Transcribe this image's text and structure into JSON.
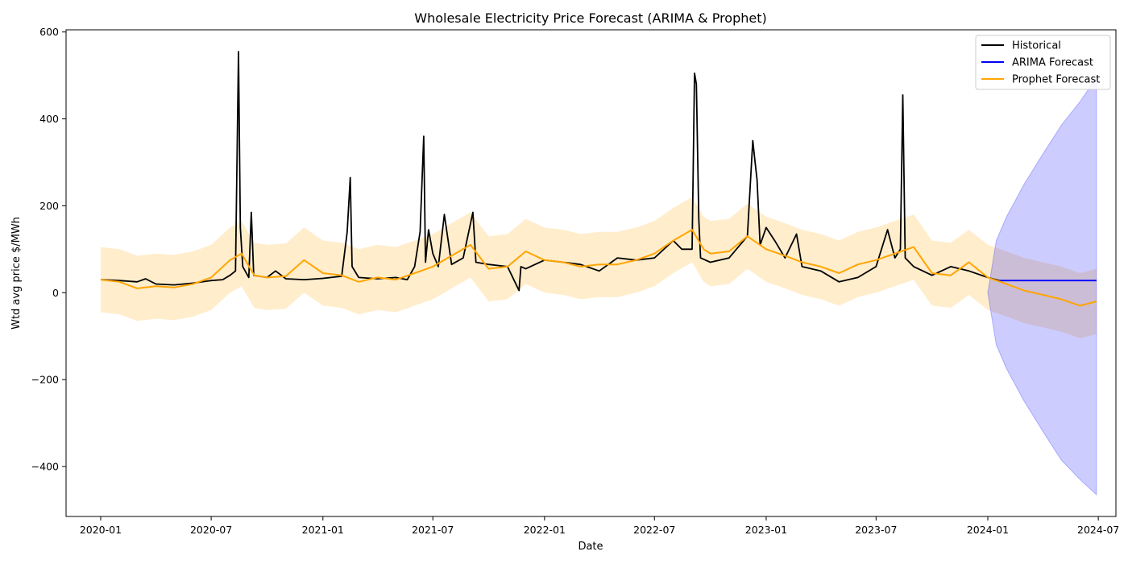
{
  "chart_data": {
    "type": "line",
    "title": "Wholesale Electricity Price Forecast (ARIMA & Prophet)",
    "xlabel": "Date",
    "ylabel": "Wtd avg price $/MWh",
    "xlim": [
      "2019-11-05",
      "2024-07-30"
    ],
    "ylim": [
      -515,
      605
    ],
    "x_ticks": [
      "2020-01",
      "2020-07",
      "2021-01",
      "2021-07",
      "2022-01",
      "2022-07",
      "2023-01",
      "2023-07",
      "2024-01",
      "2024-07"
    ],
    "y_ticks": [
      -400,
      -200,
      0,
      200,
      400,
      600
    ],
    "grid": false,
    "legend_position": "top-right",
    "series": [
      {
        "name": "Historical",
        "color": "#000000",
        "points": [
          [
            "2020-01-01",
            30
          ],
          [
            "2020-02-01",
            28
          ],
          [
            "2020-03-01",
            25
          ],
          [
            "2020-03-15",
            32
          ],
          [
            "2020-04-01",
            20
          ],
          [
            "2020-05-01",
            18
          ],
          [
            "2020-06-01",
            22
          ],
          [
            "2020-07-01",
            28
          ],
          [
            "2020-07-20",
            30
          ],
          [
            "2020-08-01",
            40
          ],
          [
            "2020-08-10",
            50
          ],
          [
            "2020-08-15",
            555
          ],
          [
            "2020-08-18",
            150
          ],
          [
            "2020-08-22",
            60
          ],
          [
            "2020-09-01",
            35
          ],
          [
            "2020-09-05",
            185
          ],
          [
            "2020-09-09",
            40
          ],
          [
            "2020-10-01",
            35
          ],
          [
            "2020-10-15",
            50
          ],
          [
            "2020-11-01",
            32
          ],
          [
            "2020-12-01",
            30
          ],
          [
            "2021-01-01",
            33
          ],
          [
            "2021-02-01",
            38
          ],
          [
            "2021-02-10",
            140
          ],
          [
            "2021-02-15",
            265
          ],
          [
            "2021-02-18",
            60
          ],
          [
            "2021-03-01",
            35
          ],
          [
            "2021-04-01",
            32
          ],
          [
            "2021-05-01",
            35
          ],
          [
            "2021-05-20",
            30
          ],
          [
            "2021-06-01",
            60
          ],
          [
            "2021-06-10",
            140
          ],
          [
            "2021-06-16",
            360
          ],
          [
            "2021-06-19",
            70
          ],
          [
            "2021-06-24",
            145
          ],
          [
            "2021-07-01",
            90
          ],
          [
            "2021-07-10",
            60
          ],
          [
            "2021-07-20",
            180
          ],
          [
            "2021-08-01",
            65
          ],
          [
            "2021-08-20",
            80
          ],
          [
            "2021-09-05",
            185
          ],
          [
            "2021-09-10",
            70
          ],
          [
            "2021-10-01",
            65
          ],
          [
            "2021-11-01",
            60
          ],
          [
            "2021-11-20",
            5
          ],
          [
            "2021-11-23",
            60
          ],
          [
            "2021-12-01",
            55
          ],
          [
            "2022-01-01",
            75
          ],
          [
            "2022-02-01",
            70
          ],
          [
            "2022-03-01",
            65
          ],
          [
            "2022-04-01",
            50
          ],
          [
            "2022-05-01",
            80
          ],
          [
            "2022-06-01",
            75
          ],
          [
            "2022-07-01",
            80
          ],
          [
            "2022-08-01",
            120
          ],
          [
            "2022-08-15",
            100
          ],
          [
            "2022-09-01",
            100
          ],
          [
            "2022-09-05",
            505
          ],
          [
            "2022-09-08",
            480
          ],
          [
            "2022-09-12",
            170
          ],
          [
            "2022-09-15",
            80
          ],
          [
            "2022-10-01",
            70
          ],
          [
            "2022-11-01",
            80
          ],
          [
            "2022-12-01",
            130
          ],
          [
            "2022-12-10",
            350
          ],
          [
            "2022-12-13",
            310
          ],
          [
            "2022-12-17",
            260
          ],
          [
            "2022-12-22",
            110
          ],
          [
            "2023-01-01",
            150
          ],
          [
            "2023-01-15",
            120
          ],
          [
            "2023-02-01",
            80
          ],
          [
            "2023-02-20",
            135
          ],
          [
            "2023-03-01",
            60
          ],
          [
            "2023-04-01",
            50
          ],
          [
            "2023-05-01",
            25
          ],
          [
            "2023-06-01",
            35
          ],
          [
            "2023-07-01",
            60
          ],
          [
            "2023-07-20",
            145
          ],
          [
            "2023-08-01",
            80
          ],
          [
            "2023-08-10",
            100
          ],
          [
            "2023-08-14",
            455
          ],
          [
            "2023-08-18",
            80
          ],
          [
            "2023-09-01",
            60
          ],
          [
            "2023-10-01",
            40
          ],
          [
            "2023-11-01",
            60
          ],
          [
            "2023-12-01",
            50
          ],
          [
            "2024-01-01",
            35
          ],
          [
            "2024-01-20",
            28
          ]
        ]
      },
      {
        "name": "ARIMA Forecast",
        "color": "#0000ff",
        "points": [
          [
            "2024-01-20",
            28
          ],
          [
            "2024-06-28",
            28
          ]
        ],
        "ci_lower": [
          [
            "2024-01-01",
            0
          ],
          [
            "2024-01-15",
            -120
          ],
          [
            "2024-02-01",
            -175
          ],
          [
            "2024-03-01",
            -250
          ],
          [
            "2024-04-01",
            -320
          ],
          [
            "2024-05-01",
            -385
          ],
          [
            "2024-06-01",
            -430
          ],
          [
            "2024-06-28",
            -465
          ]
        ],
        "ci_upper": [
          [
            "2024-01-01",
            0
          ],
          [
            "2024-01-15",
            120
          ],
          [
            "2024-02-01",
            175
          ],
          [
            "2024-03-01",
            250
          ],
          [
            "2024-04-01",
            320
          ],
          [
            "2024-05-01",
            385
          ],
          [
            "2024-06-01",
            440
          ],
          [
            "2024-06-28",
            495
          ]
        ]
      },
      {
        "name": "Prophet Forecast",
        "color": "#ffa500",
        "points": [
          [
            "2020-01-01",
            30
          ],
          [
            "2020-02-01",
            25
          ],
          [
            "2020-03-01",
            10
          ],
          [
            "2020-04-01",
            15
          ],
          [
            "2020-05-01",
            12
          ],
          [
            "2020-06-01",
            20
          ],
          [
            "2020-07-01",
            35
          ],
          [
            "2020-08-01",
            75
          ],
          [
            "2020-08-20",
            90
          ],
          [
            "2020-09-10",
            40
          ],
          [
            "2020-10-01",
            35
          ],
          [
            "2020-11-01",
            38
          ],
          [
            "2020-12-01",
            75
          ],
          [
            "2021-01-01",
            45
          ],
          [
            "2021-02-01",
            40
          ],
          [
            "2021-03-01",
            25
          ],
          [
            "2021-04-01",
            35
          ],
          [
            "2021-05-01",
            30
          ],
          [
            "2021-06-01",
            45
          ],
          [
            "2021-07-01",
            60
          ],
          [
            "2021-08-01",
            85
          ],
          [
            "2021-09-01",
            110
          ],
          [
            "2021-10-01",
            55
          ],
          [
            "2021-11-01",
            60
          ],
          [
            "2021-12-01",
            95
          ],
          [
            "2022-01-01",
            75
          ],
          [
            "2022-02-01",
            70
          ],
          [
            "2022-03-01",
            60
          ],
          [
            "2022-04-01",
            65
          ],
          [
            "2022-05-01",
            65
          ],
          [
            "2022-06-01",
            75
          ],
          [
            "2022-07-01",
            90
          ],
          [
            "2022-08-01",
            120
          ],
          [
            "2022-09-01",
            145
          ],
          [
            "2022-09-20",
            100
          ],
          [
            "2022-10-01",
            90
          ],
          [
            "2022-11-01",
            95
          ],
          [
            "2022-12-01",
            130
          ],
          [
            "2023-01-01",
            100
          ],
          [
            "2023-02-01",
            85
          ],
          [
            "2023-03-01",
            70
          ],
          [
            "2023-04-01",
            60
          ],
          [
            "2023-05-01",
            45
          ],
          [
            "2023-06-01",
            65
          ],
          [
            "2023-07-01",
            75
          ],
          [
            "2023-08-01",
            90
          ],
          [
            "2023-09-01",
            105
          ],
          [
            "2023-10-01",
            45
          ],
          [
            "2023-11-01",
            40
          ],
          [
            "2023-12-01",
            70
          ],
          [
            "2024-01-01",
            35
          ],
          [
            "2024-02-01",
            20
          ],
          [
            "2024-03-01",
            5
          ],
          [
            "2024-04-01",
            -5
          ],
          [
            "2024-05-01",
            -15
          ],
          [
            "2024-06-01",
            -30
          ],
          [
            "2024-06-28",
            -20
          ]
        ],
        "band_halfwidth": 75
      }
    ]
  }
}
